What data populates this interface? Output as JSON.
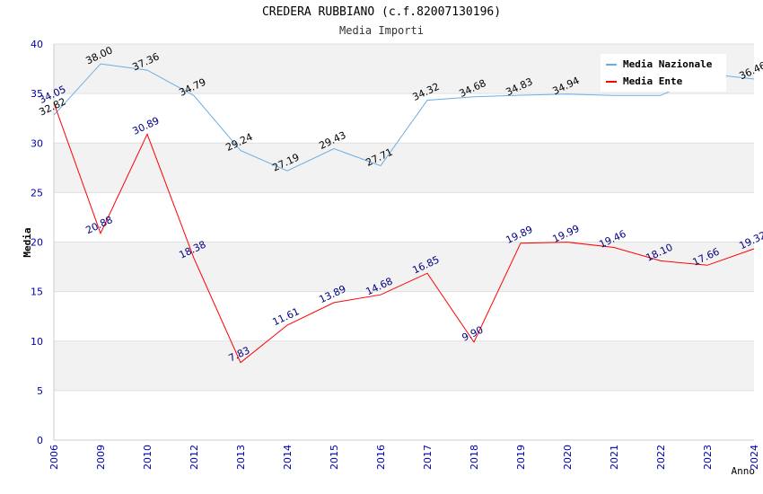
{
  "chart_data": {
    "type": "line",
    "title": "CREDERA RUBBIANO (c.f.82007130196)",
    "subtitle": "Media Importi",
    "xlabel": "Anno",
    "ylabel": "Media",
    "ylim": [
      0,
      40
    ],
    "yticks": [
      "0",
      "5",
      "10",
      "15",
      "20",
      "25",
      "30",
      "35",
      "40"
    ],
    "categories": [
      "2006",
      "2009",
      "2010",
      "2012",
      "2013",
      "2014",
      "2015",
      "2016",
      "2017",
      "2018",
      "2019",
      "2020",
      "2021",
      "2022",
      "2023",
      "2024"
    ],
    "series": [
      {
        "name": "Media Nazionale",
        "color": "#6aaee8",
        "label_color": "#000000",
        "values": [
          32.82,
          38.0,
          37.36,
          34.79,
          29.24,
          27.19,
          29.43,
          27.71,
          34.32,
          34.68,
          34.83,
          34.94,
          34.8,
          34.8,
          37.0,
          36.46
        ],
        "labels": [
          "32.82",
          "38.00",
          "37.36",
          "34.79",
          "29.24",
          "27.19",
          "29.43",
          "27.71",
          "34.32",
          "34.68",
          "34.83",
          "34.94",
          "",
          "",
          "",
          "36.46"
        ]
      },
      {
        "name": "Media Ente",
        "color": "#ff0000",
        "label_color": "#000080",
        "values": [
          34.05,
          20.88,
          30.89,
          18.38,
          7.83,
          11.61,
          13.89,
          14.68,
          16.85,
          9.9,
          19.89,
          19.99,
          19.46,
          18.1,
          17.66,
          19.32
        ],
        "labels": [
          "34.05",
          "20.88",
          "30.89",
          "18.38",
          "7.83",
          "11.61",
          "13.89",
          "14.68",
          "16.85",
          "9.90",
          "19.89",
          "19.99",
          "19.46",
          "18.10",
          "17.66",
          "19.32"
        ]
      }
    ],
    "grid": true,
    "legend_position": "top-right"
  }
}
